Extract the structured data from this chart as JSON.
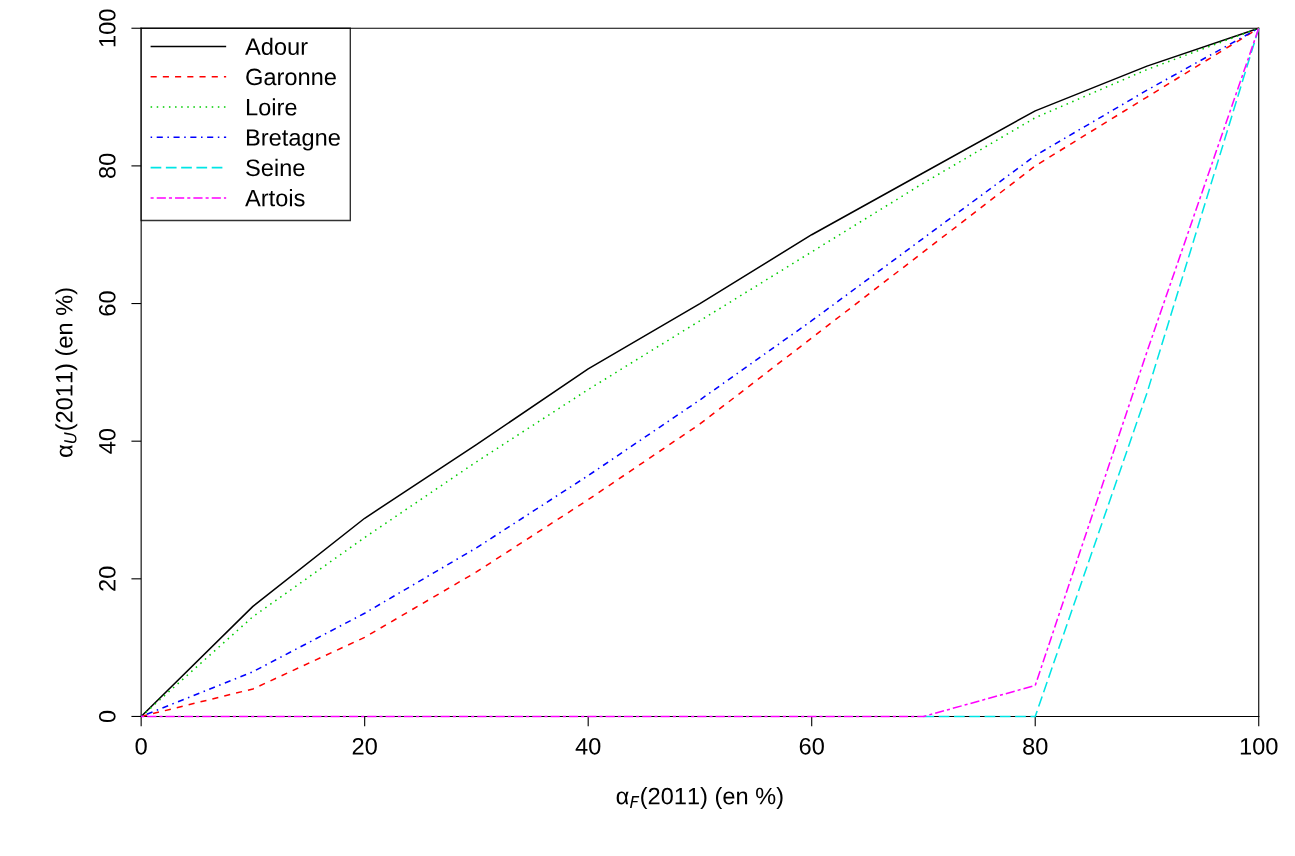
{
  "chart_data": {
    "type": "line",
    "xlabel": "α$_{F}$(2011) (en %)",
    "ylabel": "α$_{U}$(2011) (en %)",
    "x": [
      0,
      10,
      20,
      30,
      40,
      50,
      60,
      70,
      80,
      90,
      100
    ],
    "series": [
      {
        "name": "Adour",
        "color": "#000000",
        "line_style": "solid",
        "values": [
          0,
          16,
          28.8,
          39.5,
          50.5,
          60,
          70,
          79,
          88,
          94.5,
          100
        ]
      },
      {
        "name": "Garonne",
        "color": "#ff0000",
        "line_style": "dashed",
        "values": [
          0,
          4,
          11.5,
          21,
          31.5,
          42.5,
          55,
          67.5,
          80,
          90,
          100
        ]
      },
      {
        "name": "Loire",
        "color": "#00cd00",
        "line_style": "dotted",
        "values": [
          0,
          14.5,
          26,
          37,
          47.5,
          57.5,
          67.5,
          77.5,
          87,
          94,
          100
        ]
      },
      {
        "name": "Bretagne",
        "color": "#0000ff",
        "line_style": "dashdot",
        "values": [
          0,
          6.5,
          15,
          24.5,
          35,
          46,
          57.5,
          69.5,
          81.5,
          91,
          100
        ]
      },
      {
        "name": "Seine",
        "color": "#00e5e5",
        "line_style": "longdash",
        "values": [
          null,
          null,
          null,
          null,
          null,
          null,
          null,
          0,
          0,
          47,
          100
        ]
      },
      {
        "name": "Artois",
        "color": "#ff00ff",
        "line_style": "twodash",
        "values": [
          0,
          0,
          0,
          0,
          0,
          0,
          0,
          0,
          4.5,
          53,
          100
        ]
      }
    ],
    "xlim": [
      0,
      100
    ],
    "ylim": [
      0,
      100
    ],
    "xticks": [
      0,
      20,
      40,
      60,
      80,
      100
    ],
    "yticks": [
      0,
      20,
      40,
      60,
      80,
      100
    ],
    "grid": false,
    "legend": "top left",
    "marker": "none"
  }
}
